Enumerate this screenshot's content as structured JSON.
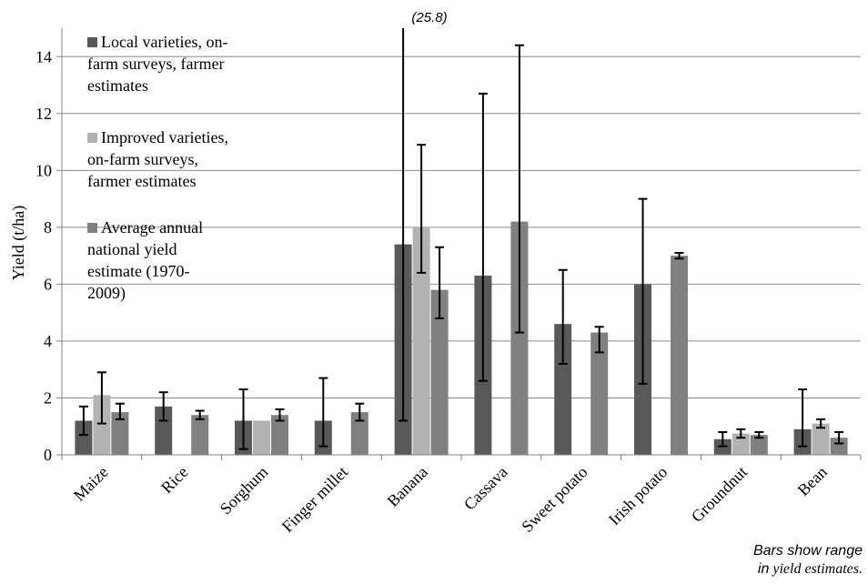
{
  "chart_data": {
    "type": "bar",
    "ylabel": "Yield (t/ha)",
    "ylim": [
      0,
      15
    ],
    "yticks": [
      0,
      2,
      4,
      6,
      8,
      10,
      12,
      14
    ],
    "grid": true,
    "legend_position": "top-left",
    "categories": [
      "Maize",
      "Rice",
      "Sorghum",
      "Finger millet",
      "Banana",
      "Cassava",
      "Sweet potato",
      "Irish potato",
      "Groundnut",
      "Bean"
    ],
    "series": [
      {
        "name": "Local varieties, on-farm surveys, farmer estimates",
        "color": "#595959",
        "values": [
          1.2,
          1.7,
          1.2,
          1.2,
          7.4,
          6.3,
          4.6,
          6.0,
          0.55,
          0.9
        ],
        "err_low": [
          0.7,
          1.2,
          0.2,
          0.3,
          1.2,
          2.6,
          3.2,
          2.5,
          0.3,
          0.3
        ],
        "err_high": [
          1.7,
          2.2,
          2.3,
          2.7,
          25.8,
          12.7,
          6.5,
          9.0,
          0.8,
          2.3
        ]
      },
      {
        "name": "Improved varieties, on-farm surveys, farmer estimates",
        "color": "#b2b2b2",
        "values": [
          2.1,
          null,
          1.2,
          null,
          8.0,
          null,
          null,
          null,
          0.75,
          1.1
        ],
        "err_low": [
          1.1,
          null,
          null,
          null,
          6.4,
          null,
          null,
          null,
          0.6,
          0.95
        ],
        "err_high": [
          2.9,
          null,
          null,
          null,
          10.9,
          null,
          null,
          null,
          0.9,
          1.25
        ]
      },
      {
        "name": "Average annual national yield estimate (1970-2009)",
        "color": "#808080",
        "values": [
          1.5,
          1.4,
          1.4,
          1.5,
          5.8,
          8.2,
          4.3,
          7.0,
          0.7,
          0.6
        ],
        "err_low": [
          1.25,
          1.25,
          1.2,
          1.2,
          4.8,
          4.3,
          3.6,
          6.9,
          0.6,
          0.4
        ],
        "err_high": [
          1.8,
          1.55,
          1.6,
          1.8,
          7.3,
          14.4,
          4.5,
          7.1,
          0.8,
          0.8
        ]
      }
    ],
    "annotations": {
      "offscale_label": "(25.8)",
      "note_line1": "Bars show range",
      "note_line2_prefix": "in",
      "note_line2_rest": "yield estimates."
    }
  }
}
